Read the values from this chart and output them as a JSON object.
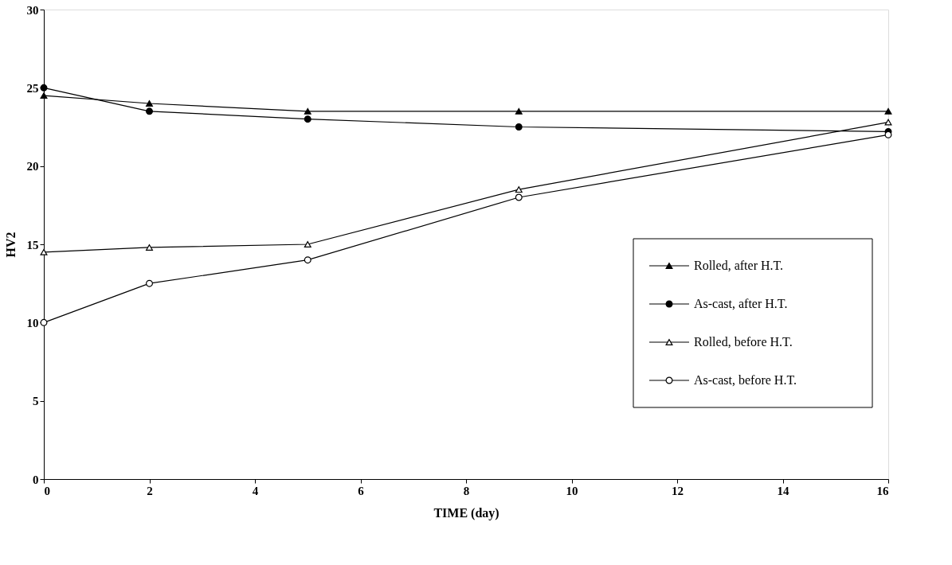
{
  "chart_data": {
    "type": "line",
    "xlabel": "TIME (day)",
    "ylabel": "HV2",
    "xlim": [
      0,
      16
    ],
    "xticks": [
      0,
      2,
      4,
      6,
      8,
      10,
      12,
      14,
      16
    ],
    "ylim": [
      0,
      30
    ],
    "yticks": [
      0,
      5,
      10,
      15,
      20,
      25,
      30
    ],
    "grid": false,
    "legend": "bottom right",
    "line_style": "solid",
    "series": [
      {
        "name": "Rolled, after H.T.",
        "color": "#000000",
        "marker": "triangle",
        "x": [
          0,
          2,
          5,
          9,
          16
        ],
        "values": [
          24.5,
          24,
          23.5,
          23.5,
          23.5
        ]
      },
      {
        "name": "As-cast, after H.T.",
        "color": "#000000",
        "marker": "circle",
        "x": [
          0,
          2,
          5,
          9,
          16
        ],
        "values": [
          25,
          23.5,
          23,
          22.5,
          22.2
        ]
      },
      {
        "name": "Rolled, before H.T.",
        "color": "#ffffff",
        "marker": "triangle",
        "x": [
          0,
          2,
          5,
          9,
          16
        ],
        "values": [
          14.5,
          14.8,
          15,
          18.5,
          22.8
        ]
      },
      {
        "name": "As-cast, before H.T.",
        "color": "#ffffff",
        "marker": "circle",
        "x": [
          0,
          2,
          5,
          9,
          16
        ],
        "values": [
          10,
          12.5,
          14,
          18,
          22
        ]
      }
    ]
  }
}
